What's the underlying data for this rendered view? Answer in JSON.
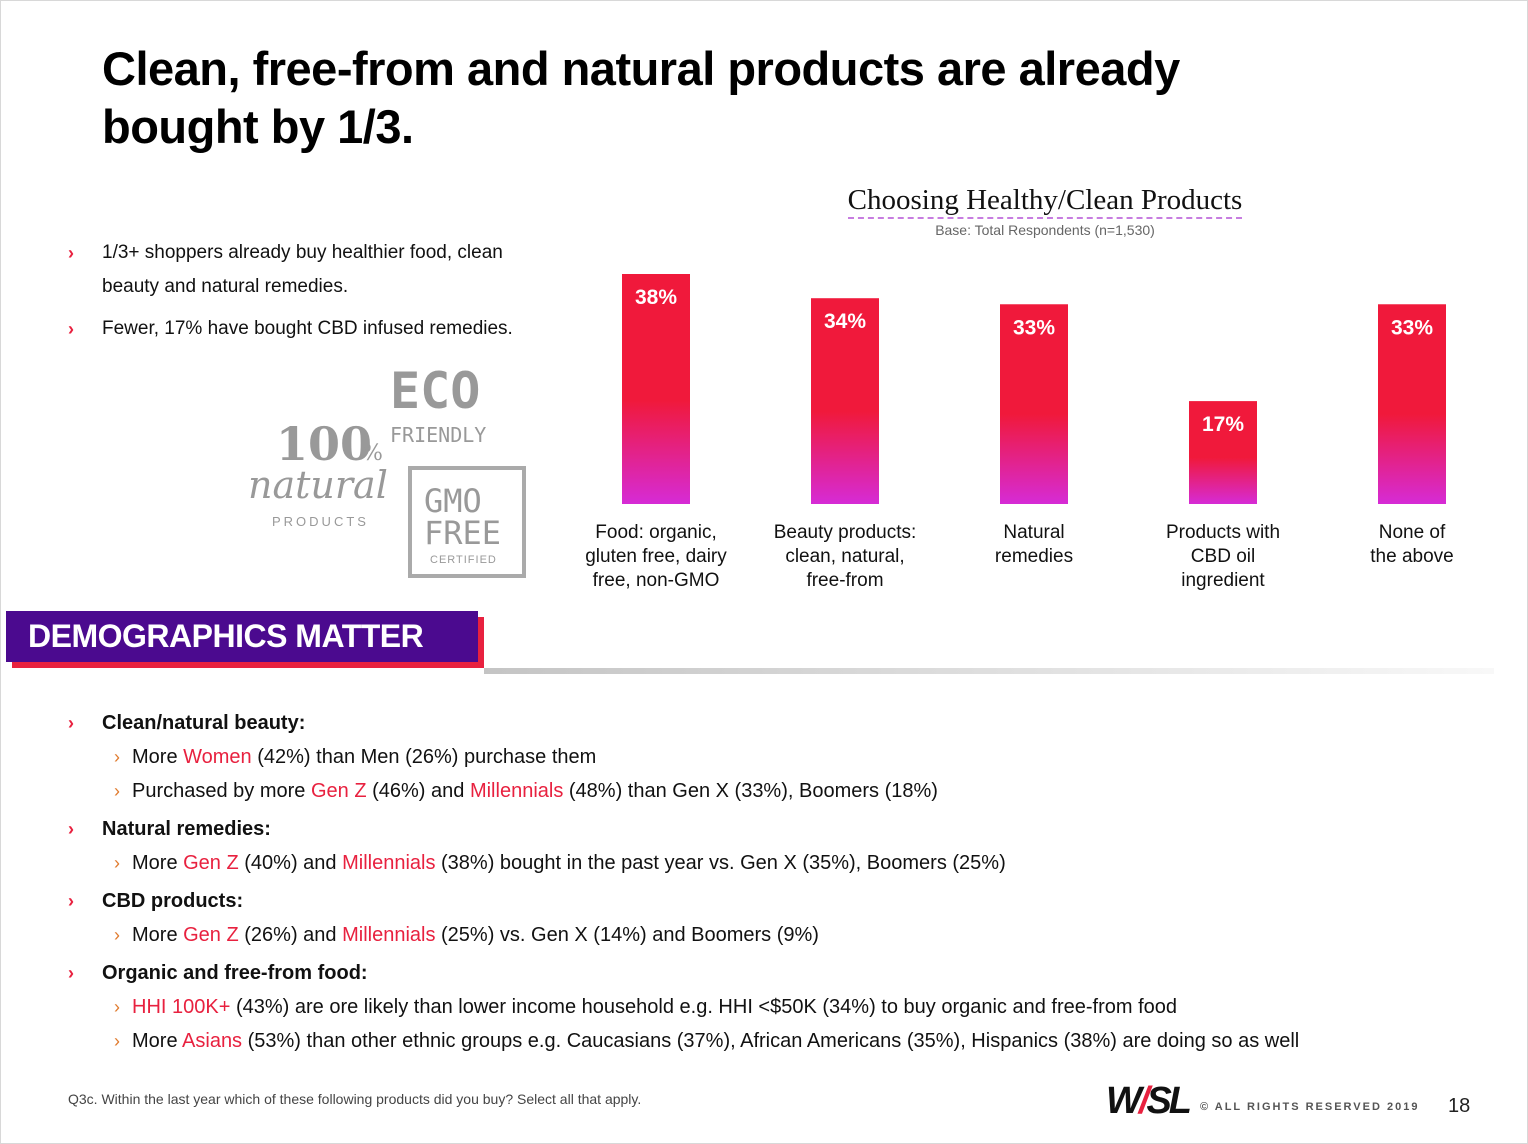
{
  "slide": {
    "title": "Clean, free-from and natural products are already bought by 1/3.",
    "bullets": [
      "1/3+ shoppers already buy healthier food, clean beauty and natural remedies.",
      "Fewer, 17% have bought CBD infused remedies."
    ],
    "badges": {
      "eco": "ECO",
      "friendly": "FRIENDLY",
      "hundred": "100",
      "percent": "%",
      "natural": "natural",
      "products": "PRODUCTS",
      "gmo": "GMO",
      "free": "FREE",
      "certified": "CERTIFIED"
    },
    "banner": "DEMOGRAPHICS MATTER",
    "demographics": [
      {
        "heading": "Clean/natural beauty:",
        "items": [
          [
            {
              "t": "More "
            },
            {
              "t": "Women",
              "hl": true
            },
            {
              "t": " (42%) than Men (26%) purchase them"
            }
          ],
          [
            {
              "t": "Purchased by more "
            },
            {
              "t": "Gen Z",
              "hl": true
            },
            {
              "t": " (46%) and "
            },
            {
              "t": "Millennials",
              "hl": true
            },
            {
              "t": " (48%) than Gen X (33%), Boomers (18%)"
            }
          ]
        ]
      },
      {
        "heading": "Natural remedies:",
        "items": [
          [
            {
              "t": "More "
            },
            {
              "t": "Gen Z",
              "hl": true
            },
            {
              "t": " (40%) and "
            },
            {
              "t": "Millennials",
              "hl": true
            },
            {
              "t": " (38%) bought in the past year vs. Gen X (35%), Boomers (25%)"
            }
          ]
        ]
      },
      {
        "heading": "CBD products:",
        "items": [
          [
            {
              "t": "More "
            },
            {
              "t": "Gen Z",
              "hl": true
            },
            {
              "t": " (26%) and "
            },
            {
              "t": "Millennials",
              "hl": true
            },
            {
              "t": " (25%) vs. Gen X (14%) and Boomers (9%)"
            }
          ]
        ]
      },
      {
        "heading": "Organic and free-from food:",
        "items": [
          [
            {
              "t": "HHI 100K+",
              "hl": true
            },
            {
              "t": " (43%)  are ore likely than lower income household e.g. HHI <$50K (34%) to buy organic and free-from food"
            }
          ],
          [
            {
              "t": "More "
            },
            {
              "t": "Asians",
              "hl": true
            },
            {
              "t": " (53%) than other ethnic groups e.g. Caucasians (37%), African Americans (35%), Hispanics (38%) are doing so as well"
            }
          ]
        ]
      }
    ],
    "footnote": "Q3c. Within the last year which of these following products did you buy? Select all that apply.",
    "logo_w": "W",
    "logo_slash": "/",
    "logo_sl": "SL",
    "rights": "© ALL RIGHTS RESERVED 2019",
    "page_number": "18"
  },
  "chart_data": {
    "type": "bar",
    "title": "Choosing Healthy/Clean Products",
    "subtitle": "Base: Total Respondents (n=1,530)",
    "categories": [
      [
        "Food: organic,",
        "gluten free, dairy",
        "free, non-GMO"
      ],
      [
        "Beauty products:",
        "clean, natural,",
        "free-from"
      ],
      [
        "Natural",
        "remedies"
      ],
      [
        "Products with",
        "CBD oil",
        "ingredient"
      ],
      [
        "None of",
        "the above"
      ]
    ],
    "values": [
      38,
      34,
      33,
      17,
      33
    ],
    "value_labels": [
      "38%",
      "34%",
      "33%",
      "17%",
      "33%"
    ],
    "ylim": [
      0,
      38
    ],
    "grid": false,
    "colors": {
      "top": "#f0193b",
      "bottom": "#d62bd6"
    }
  }
}
